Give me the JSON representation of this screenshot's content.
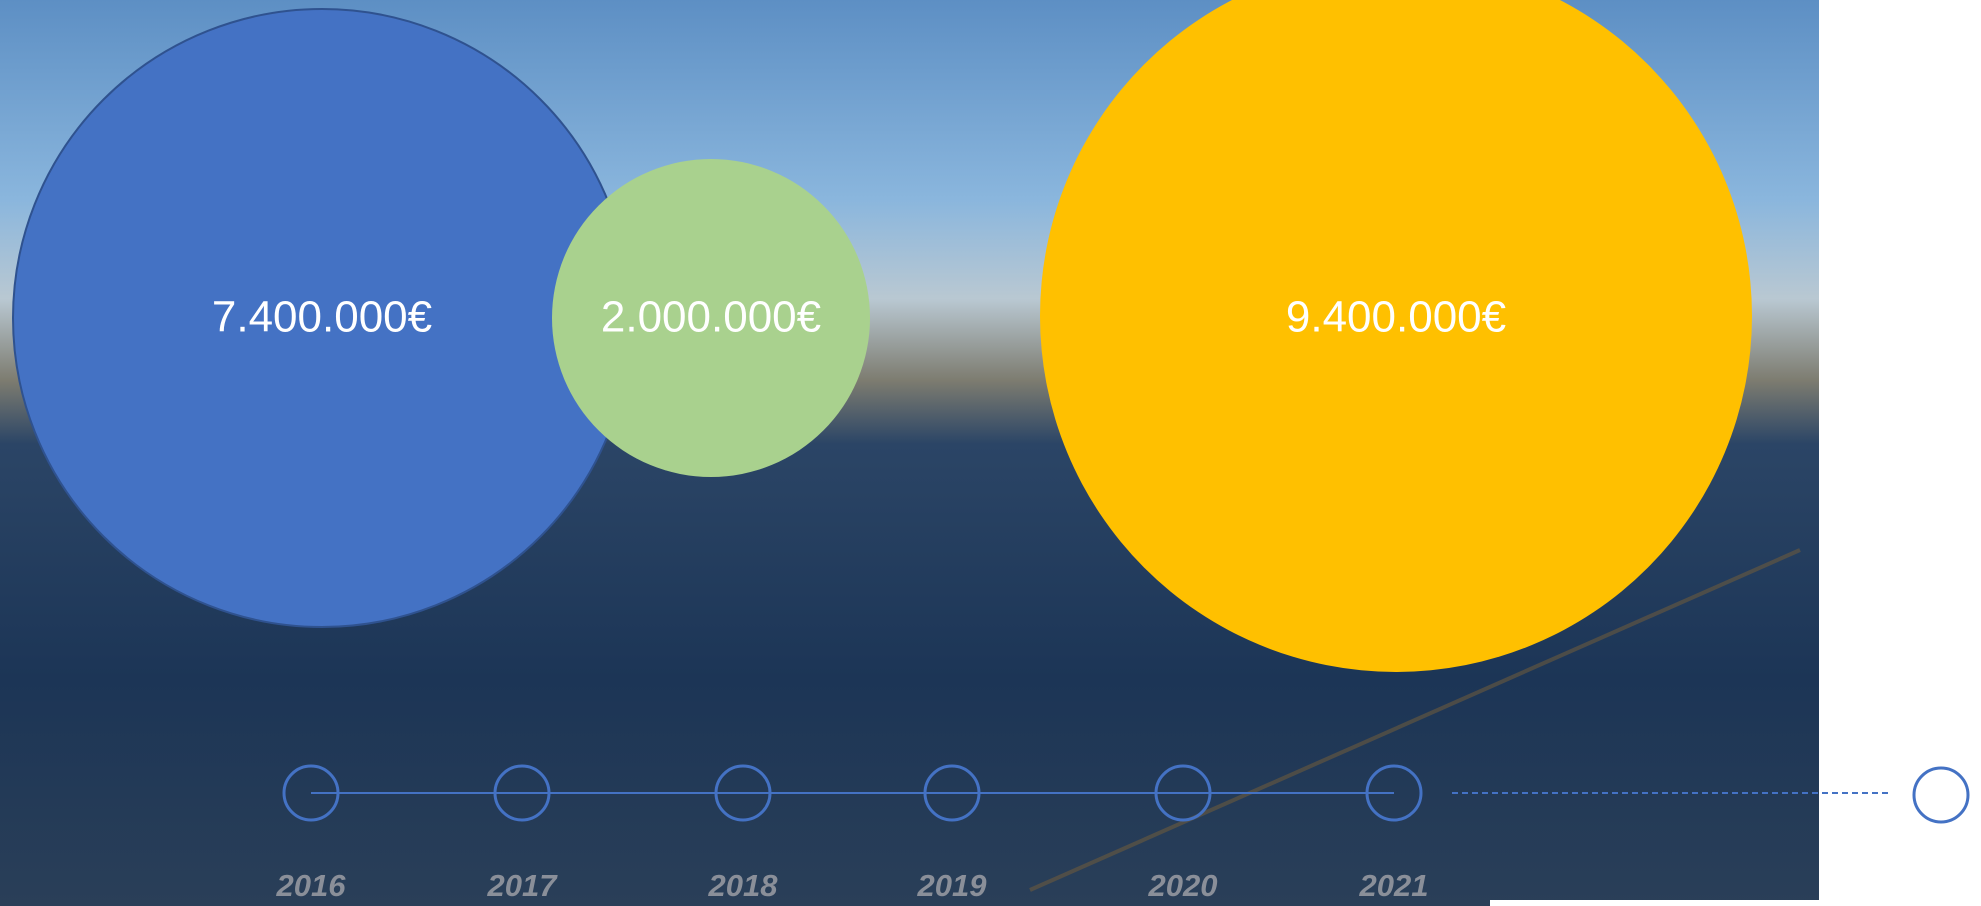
{
  "bubbles": [
    {
      "label": "7.400.000€"
    },
    {
      "label": "2.000.000€"
    },
    {
      "label": "9.400.000€"
    }
  ],
  "timeline": {
    "years": [
      "2016",
      "2017",
      "2018",
      "2019",
      "2020",
      "2021"
    ]
  }
}
